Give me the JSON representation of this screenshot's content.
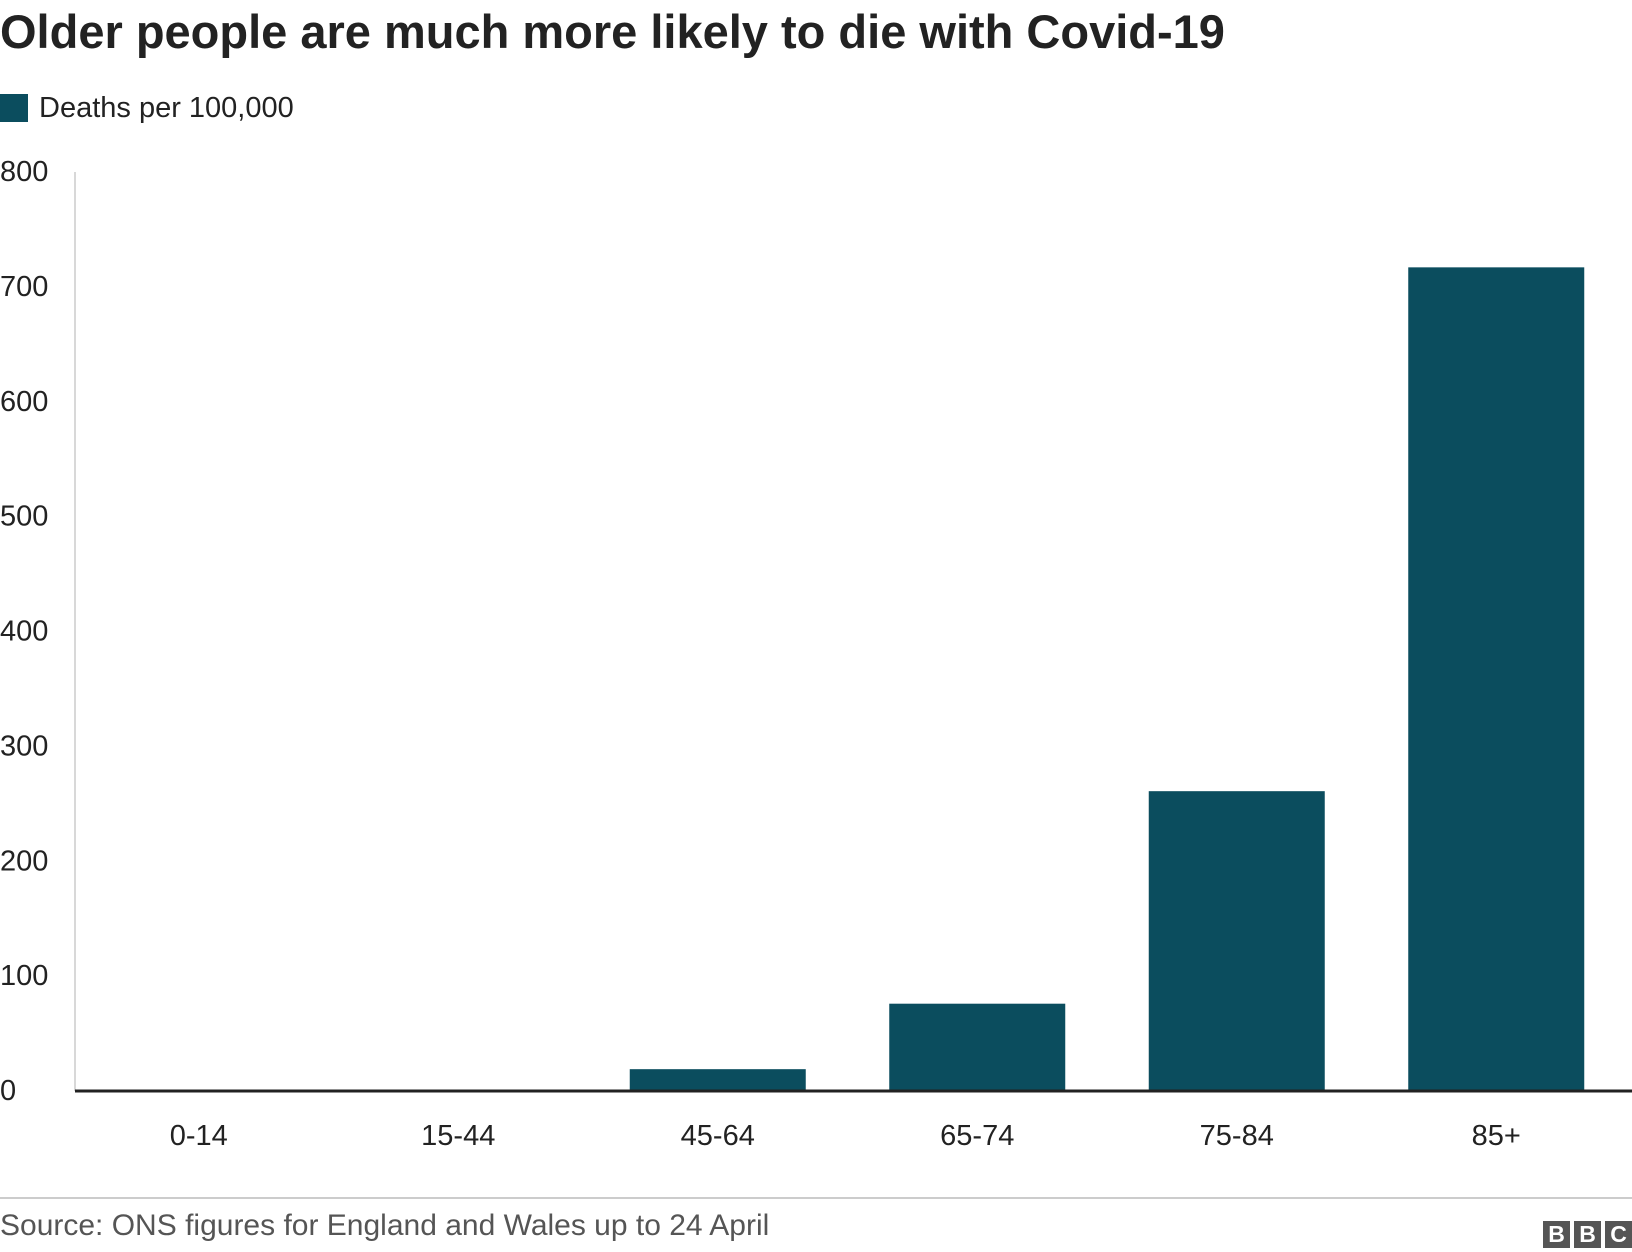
{
  "title": "Older people are much more likely to die with Covid-19",
  "legend": {
    "label": "Deaths per 100,000",
    "color": "#0b4d5e"
  },
  "chart_data": {
    "type": "bar",
    "title": "Older people are much more likely to die with Covid-19",
    "categories": [
      "0-14",
      "15-44",
      "45-64",
      "65-74",
      "75-84",
      "85+"
    ],
    "series": [
      {
        "name": "Deaths per 100,000",
        "values": [
          0.1,
          1,
          19,
          76,
          261,
          717
        ],
        "color": "#0b4d5e"
      }
    ],
    "ylim": [
      0,
      800
    ],
    "yticks": [
      0,
      100,
      200,
      300,
      400,
      500,
      600,
      700,
      800
    ],
    "ytick_labels": [
      "0",
      "100",
      "200",
      "300",
      "400",
      "500",
      "600",
      "700",
      "800"
    ],
    "xlabel": "",
    "ylabel": "",
    "grid": false,
    "legend_position": "top-left"
  },
  "footer": {
    "source": "Source: ONS figures for England and Wales up to 24 April",
    "logo_letters": [
      "B",
      "B",
      "C"
    ]
  }
}
